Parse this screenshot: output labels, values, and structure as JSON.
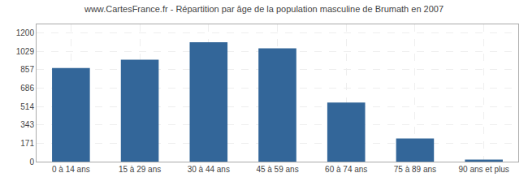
{
  "chart_data": {
    "type": "bar",
    "title": "www.CartesFrance.fr - Répartition par âge de la population masculine de Brumath en 2007",
    "categories": [
      "0 à 14 ans",
      "15 à 29 ans",
      "30 à 44 ans",
      "45 à 59 ans",
      "60 à 74 ans",
      "75 à 89 ans",
      "90 ans et plus"
    ],
    "values": [
      873,
      950,
      1113,
      1057,
      551,
      215,
      18
    ],
    "color": "#336699",
    "ylim": [
      0,
      1280
    ],
    "yticks": [
      0,
      171,
      343,
      514,
      686,
      857,
      1029,
      1200
    ],
    "grid": true
  }
}
